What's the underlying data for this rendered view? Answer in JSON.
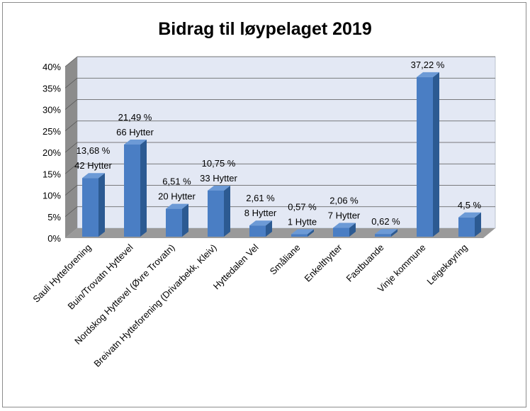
{
  "chart_data": {
    "type": "bar",
    "title": "Bidrag til løypelaget 2019",
    "xlabel": "",
    "ylabel": "",
    "ylim": [
      0,
      40
    ],
    "yticks": [
      "0%",
      "5%",
      "10%",
      "15%",
      "20%",
      "25%",
      "30%",
      "35%",
      "40%"
    ],
    "grid": true,
    "legend": "none",
    "style": "3d-column",
    "categories": [
      "Sauli Hytteforening",
      "Buin/Trovatn Hyttevel",
      "Nordskog Hyttevel (Øvre Trovatn)",
      "Breivatn Hytteforening (Drivarbekk, Kleiv)",
      "Hyttedalen Vel",
      "Småliane",
      "Enkelthytter",
      "Fastbuande",
      "Vinje kommune",
      "Leigekøyring"
    ],
    "values": [
      13.68,
      21.49,
      6.51,
      10.75,
      2.61,
      0.57,
      2.06,
      0.62,
      37.22,
      4.5
    ],
    "data_labels": [
      [
        "13,68 %",
        "42 Hytter"
      ],
      [
        "21,49 %",
        "66 Hytter"
      ],
      [
        "6,51 %",
        "20 Hytter"
      ],
      [
        "10,75 %",
        "33 Hytter"
      ],
      [
        "2,61 %",
        "8 Hytter"
      ],
      [
        "0,57 %",
        "1 Hytte"
      ],
      [
        "2,06 %",
        "7 Hytter"
      ],
      [
        "0,62 %"
      ],
      [
        "37,22 %"
      ],
      [
        "4,5 %"
      ]
    ],
    "colors": {
      "bar_front": "#4a7ec4",
      "bar_side": "#2c5a92",
      "bar_top": "#6c9ad6",
      "wall": "#e3e8f4",
      "side_wall": "#8c8c8c",
      "floor": "#9a9a9a",
      "grid": "#555555"
    }
  }
}
